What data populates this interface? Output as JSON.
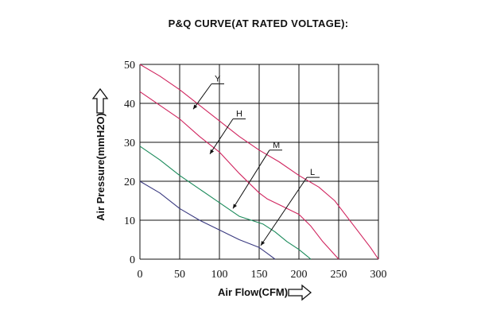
{
  "chart_data": {
    "type": "line",
    "title": "P&Q CURVE(AT RATED VOLTAGE):",
    "xlabel": "Air Flow(CFM)",
    "ylabel": "Air Pressure(mmH2O)",
    "xlim": [
      0,
      300
    ],
    "ylim": [
      0,
      50
    ],
    "xticks": [
      "0",
      "50",
      "100",
      "150",
      "200",
      "250",
      "300"
    ],
    "yticks": [
      "0",
      "10",
      "20",
      "30",
      "40",
      "50"
    ],
    "grid": true,
    "series": [
      {
        "name": "Y",
        "color": "#d0245e",
        "x": [
          0,
          25,
          50,
          75,
          100,
          125,
          150,
          175,
          200,
          225,
          245,
          260,
          275,
          290,
          300
        ],
        "y": [
          50,
          47,
          43.5,
          39.5,
          35.5,
          31.5,
          28,
          25,
          21.5,
          18.5,
          15,
          11,
          7,
          3,
          0
        ]
      },
      {
        "name": "H",
        "color": "#d0245e",
        "x": [
          0,
          25,
          50,
          75,
          100,
          125,
          150,
          160,
          175,
          200,
          215,
          230,
          250
        ],
        "y": [
          43,
          39.5,
          36,
          31.5,
          27.5,
          22,
          17,
          15.5,
          14,
          11.5,
          8.5,
          4.5,
          0
        ]
      },
      {
        "name": "M",
        "color": "#1a8a5a",
        "x": [
          0,
          25,
          50,
          75,
          100,
          125,
          140,
          155,
          170,
          185,
          200,
          215
        ],
        "y": [
          29,
          25.5,
          21.5,
          18,
          14.5,
          11,
          10,
          9,
          7,
          4.5,
          2.5,
          0
        ]
      },
      {
        "name": "L",
        "color": "#3a3a80",
        "x": [
          0,
          25,
          50,
          75,
          100,
          125,
          150,
          160,
          170
        ],
        "y": [
          20,
          17,
          13,
          10,
          7.5,
          5,
          3,
          1.5,
          0
        ]
      }
    ]
  }
}
